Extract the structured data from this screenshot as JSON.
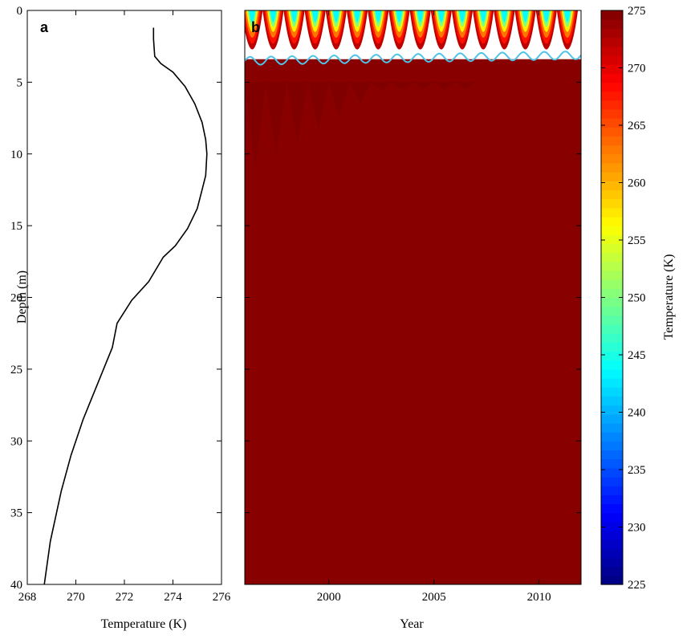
{
  "chart_data": [
    {
      "type": "line",
      "panel_label": "a",
      "xlabel": "Temperature (K)",
      "ylabel": "Depth (m)",
      "xlim": [
        268,
        276
      ],
      "ylim": [
        40,
        0
      ],
      "y_reversed": true,
      "xticks": [
        "268",
        "270",
        "272",
        "274",
        "276"
      ],
      "yticks": [
        "0",
        "5",
        "10",
        "15",
        "20",
        "25",
        "30",
        "35",
        "40"
      ],
      "series": [
        {
          "color": "#000000",
          "x": [
            273.2,
            273.2,
            273.25,
            273.5,
            274.0,
            274.5,
            274.9,
            275.2,
            275.35,
            275.4,
            275.35,
            275.2,
            275.0,
            274.6,
            274.1,
            273.6,
            273.0,
            272.3,
            271.7,
            271.5,
            270.9,
            270.3,
            269.8,
            269.4,
            268.95,
            268.7
          ],
          "y": [
            1.2,
            2.0,
            3.2,
            3.7,
            4.3,
            5.3,
            6.5,
            7.8,
            9.0,
            10.0,
            11.5,
            12.5,
            13.8,
            15.2,
            16.4,
            17.2,
            18.9,
            20.2,
            21.8,
            23.5,
            26.0,
            28.5,
            31.0,
            33.5,
            37.0,
            40.0
          ]
        }
      ]
    },
    {
      "type": "heatmap",
      "panel_label": "b",
      "xlabel": "Year",
      "xlim": [
        1996,
        2012
      ],
      "ylim": [
        40,
        0
      ],
      "xticks": [
        "2000",
        "2005",
        "2010"
      ],
      "boundary_color": "#4fc3e8",
      "boundary_depth_range": [
        3.0,
        3.8
      ],
      "seasonal_cycles_per_year": 1,
      "layers": [
        {
          "top_depth": 3.4,
          "bottom_depth": 4.6,
          "temperature": 274.6
        },
        {
          "top_depth": 4.6,
          "bottom_depth": 11.8,
          "temperature": 275.0
        },
        {
          "top_depth": 11.8,
          "bottom_depth": 14.8,
          "temperature": 274.6
        },
        {
          "top_depth": 14.8,
          "bottom_depth": 18.8,
          "temperature": 273.9
        },
        {
          "top_depth": 18.8,
          "bottom_depth": 24.6,
          "temperature": 273.1
        },
        {
          "top_depth": 24.6,
          "bottom_depth": 32.0,
          "temperature": 272.2
        },
        {
          "top_depth": 32.0,
          "bottom_depth": 40.0,
          "temperature": 270.9
        }
      ],
      "colorbar": {
        "label": "Temperature (K)",
        "min": 225,
        "max": 275,
        "colormap": "jet",
        "ticks": [
          "225",
          "230",
          "235",
          "240",
          "245",
          "250",
          "255",
          "260",
          "265",
          "270",
          "275"
        ]
      }
    }
  ]
}
